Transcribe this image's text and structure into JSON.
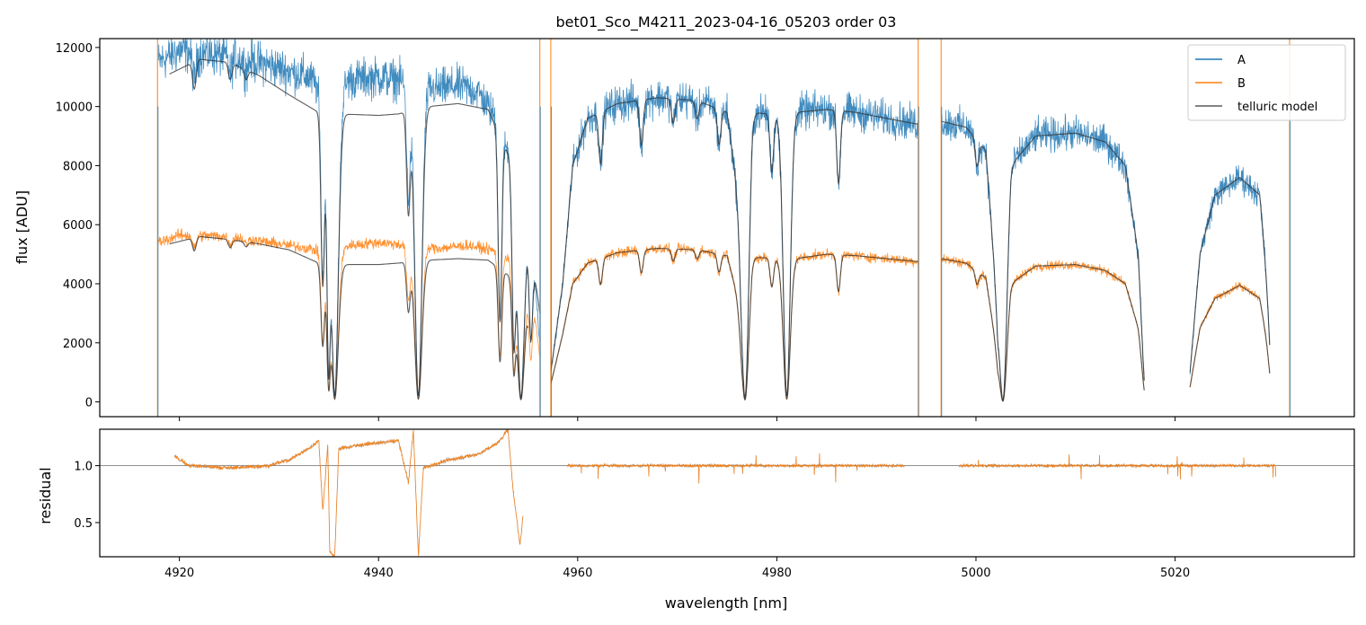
{
  "chart_data": [
    {
      "panel": "spectrum",
      "type": "line",
      "title": "bet01_Sco_M4211_2023-04-16_05203  order 03",
      "xlabel": "",
      "ylabel": "flux [ADU]",
      "xlim": [
        4912,
        5038
      ],
      "ylim": [
        -500,
        12300
      ],
      "yticks": [
        0,
        2000,
        4000,
        6000,
        8000,
        10000,
        12000
      ],
      "ytick_labels": [
        "0",
        "2000",
        "4000",
        "6000",
        "8000",
        "10000",
        "12000"
      ],
      "xticks": [
        4920,
        4940,
        4960,
        4980,
        5000,
        5020
      ],
      "legend": {
        "placement": "top-right",
        "entries": [
          "A",
          "B",
          "telluric model"
        ]
      },
      "series": [
        {
          "name": "A",
          "color": "#1f77b4"
        },
        {
          "name": "B",
          "color": "#ff7f0e"
        },
        {
          "name": "telluric model",
          "color": "#595959"
        }
      ],
      "model": {
        "telluric_A_continuum": [
          [
            4919,
            11100
          ],
          [
            4922,
            11600
          ],
          [
            4925,
            11500
          ],
          [
            4928,
            11050
          ],
          [
            4931,
            10400
          ],
          [
            4934,
            9800
          ],
          [
            4936,
            9750
          ],
          [
            4940,
            9700
          ],
          [
            4942,
            9750
          ],
          [
            4945,
            10000
          ],
          [
            4948,
            10100
          ],
          [
            4951,
            9900
          ],
          [
            4953,
            8400
          ],
          [
            4955,
            6000
          ],
          [
            4956.2,
            3000
          ]
        ],
        "telluric_B_continuum": [
          [
            4919,
            5350
          ],
          [
            4922,
            5600
          ],
          [
            4925,
            5500
          ],
          [
            4928,
            5350
          ],
          [
            4931,
            5150
          ],
          [
            4934,
            4700
          ],
          [
            4936,
            4650
          ],
          [
            4940,
            4650
          ],
          [
            4942,
            4700
          ],
          [
            4945,
            4800
          ],
          [
            4948,
            4850
          ],
          [
            4951,
            4800
          ],
          [
            4953,
            4300
          ],
          [
            4955,
            3400
          ]
        ],
        "A_data_continuum": [
          [
            4917.9,
            11500
          ],
          [
            4920,
            11900
          ],
          [
            4925,
            11700
          ],
          [
            4928,
            11500
          ],
          [
            4930,
            11300
          ],
          [
            4933,
            11000
          ],
          [
            4934.5,
            10400
          ],
          [
            4936,
            10500
          ],
          [
            4937,
            10900
          ],
          [
            4940,
            11000
          ],
          [
            4942,
            10900
          ],
          [
            4944,
            10700
          ],
          [
            4946,
            10600
          ],
          [
            4948,
            10700
          ],
          [
            4950,
            10500
          ],
          [
            4952,
            9500
          ],
          [
            4954,
            7500
          ],
          [
            4955.5,
            5000
          ],
          [
            4956.2,
            2000
          ]
        ],
        "B_data_continuum": [
          [
            4917.9,
            5400
          ],
          [
            4920,
            5650
          ],
          [
            4925,
            5600
          ],
          [
            4930,
            5350
          ],
          [
            4933,
            5200
          ],
          [
            4935,
            5000
          ],
          [
            4937,
            5300
          ],
          [
            4940,
            5400
          ],
          [
            4943,
            5300
          ],
          [
            4946,
            5200
          ],
          [
            4949,
            5300
          ],
          [
            4952,
            5100
          ],
          [
            4954,
            4600
          ],
          [
            4955.5,
            3500
          ],
          [
            4956.2,
            1500
          ]
        ],
        "A_fitted_continuum": [
          [
            4957.3,
            1000
          ],
          [
            4958.5,
            4000
          ],
          [
            4959.5,
            8000
          ],
          [
            4961,
            9600
          ],
          [
            4964,
            10100
          ],
          [
            4968,
            10300
          ],
          [
            4972,
            10200
          ],
          [
            4975,
            9800
          ],
          [
            4976.5,
            6000
          ],
          [
            4977.5,
            9800
          ],
          [
            4980.5,
            9700
          ],
          [
            4981.8,
            9800
          ],
          [
            4985,
            9900
          ],
          [
            4988,
            9800
          ],
          [
            4991,
            9600
          ],
          [
            4994.2,
            9400
          ]
        ],
        "A_fitted_continuum_2": [
          [
            4996.5,
            9500
          ],
          [
            4999,
            9300
          ],
          [
            5001,
            8500
          ],
          [
            5002.2,
            3000
          ],
          [
            5003.5,
            8000
          ],
          [
            5006,
            9000
          ],
          [
            5010,
            9100
          ],
          [
            5013,
            8800
          ],
          [
            5015,
            8000
          ],
          [
            5016.3,
            5000
          ],
          [
            5016.9,
            1500
          ]
        ],
        "A_fitted_continuum_3": [
          [
            5021.5,
            1000
          ],
          [
            5022.5,
            5000
          ],
          [
            5024,
            7000
          ],
          [
            5026.5,
            7600
          ],
          [
            5028.5,
            7000
          ],
          [
            5029.5,
            3000
          ]
        ],
        "B_fitted_continuum": [
          [
            4957.3,
            600
          ],
          [
            4958.5,
            2300
          ],
          [
            4959.5,
            4000
          ],
          [
            4961,
            4700
          ],
          [
            4964,
            5050
          ],
          [
            4968,
            5200
          ],
          [
            4972,
            5150
          ],
          [
            4975,
            4950
          ],
          [
            4976.5,
            3000
          ],
          [
            4977.5,
            4900
          ],
          [
            4980.5,
            4850
          ],
          [
            4981.8,
            4850
          ],
          [
            4985,
            5000
          ],
          [
            4988,
            4950
          ],
          [
            4991,
            4850
          ],
          [
            4994.2,
            4750
          ]
        ],
        "B_fitted_continuum_2": [
          [
            4996.5,
            4850
          ],
          [
            4999,
            4700
          ],
          [
            5001,
            4200
          ],
          [
            5002.2,
            1500
          ],
          [
            5003.5,
            4000
          ],
          [
            5006,
            4600
          ],
          [
            5010,
            4650
          ],
          [
            5013,
            4450
          ],
          [
            5015,
            4000
          ],
          [
            5016.3,
            2500
          ],
          [
            5016.9,
            800
          ]
        ],
        "B_fitted_continuum_3": [
          [
            5021.5,
            500
          ],
          [
            5022.5,
            2500
          ],
          [
            5024,
            3500
          ],
          [
            5026.5,
            3950
          ],
          [
            5028.5,
            3500
          ],
          [
            5029.5,
            1500
          ]
        ],
        "absorption_lines": [
          [
            4921.5,
            0.08
          ],
          [
            4925.1,
            0.05
          ],
          [
            4926.7,
            0.03
          ],
          [
            4934.4,
            0.6
          ],
          [
            4935.0,
            0.9
          ],
          [
            4935.6,
            0.98
          ],
          [
            4943.0,
            0.35
          ],
          [
            4944.0,
            0.98
          ],
          [
            4952.2,
            0.7
          ],
          [
            4953.6,
            0.75
          ],
          [
            4954.3,
            0.98
          ],
          [
            4955.3,
            0.6
          ],
          [
            4962.3,
            0.18
          ],
          [
            4966.4,
            0.15
          ],
          [
            4969.6,
            0.08
          ],
          [
            4972.0,
            0.06
          ],
          [
            4974.2,
            0.12
          ],
          [
            4976.8,
            0.98
          ],
          [
            4979.5,
            0.2
          ],
          [
            4981.0,
            0.98
          ],
          [
            4986.2,
            0.25
          ],
          [
            5000.1,
            0.1
          ],
          [
            5002.7,
            0.99
          ],
          [
            5017.3,
            0.99
          ],
          [
            5019.2,
            0.95
          ],
          [
            5020.3,
            0.95
          ],
          [
            5030.0,
            0.99
          ]
        ],
        "spikes_orange": [
          4917.8,
          4956.2,
          4957.3,
          4994.2,
          4996.5,
          5031.5
        ],
        "spikes_blue": [
          4917.8,
          4956.2,
          4957.3,
          4994.2,
          4996.5,
          5031.5
        ]
      }
    },
    {
      "panel": "residual",
      "type": "line",
      "title": "",
      "xlabel": "wavelength [nm]",
      "ylabel": "residual",
      "xlim": [
        4912,
        5038
      ],
      "ylim": [
        0.2,
        1.32
      ],
      "yticks": [
        0.5,
        1.0
      ],
      "ytick_labels": [
        "0.5",
        "1.0"
      ],
      "xticks": [
        4920,
        4940,
        4960,
        4980,
        5000,
        5020
      ],
      "xtick_labels": [
        "4920",
        "4940",
        "4960",
        "4980",
        "5000",
        "5020"
      ],
      "reference_line": 1.0,
      "segments": [
        {
          "x_range": [
            4919.5,
            4954.5
          ],
          "color": "#ff7f0e"
        },
        {
          "x_range": [
            4959,
            4992.8
          ],
          "color": "#ff7f0e"
        },
        {
          "x_range": [
            4998.3,
            5030.1
          ],
          "color": "#ff7f0e"
        }
      ],
      "residual_shape": [
        [
          4919.5,
          1.08
        ],
        [
          4921,
          1.0
        ],
        [
          4925,
          0.98
        ],
        [
          4929,
          1.0
        ],
        [
          4931,
          1.05
        ],
        [
          4933,
          1.15
        ],
        [
          4934,
          1.22
        ],
        [
          4934.4,
          0.6
        ],
        [
          4934.9,
          1.18
        ],
        [
          4935.1,
          0.25
        ],
        [
          4935.6,
          0.2
        ],
        [
          4936,
          1.15
        ],
        [
          4938,
          1.18
        ],
        [
          4940,
          1.2
        ],
        [
          4942,
          1.22
        ],
        [
          4943,
          0.85
        ],
        [
          4943.5,
          1.32
        ],
        [
          4944.0,
          0.2
        ],
        [
          4944.5,
          0.98
        ],
        [
          4947,
          1.05
        ],
        [
          4950,
          1.1
        ],
        [
          4952,
          1.2
        ],
        [
          4953,
          1.32
        ],
        [
          4953.5,
          0.8
        ],
        [
          4954.2,
          0.3
        ],
        [
          4954.5,
          0.55
        ]
      ]
    }
  ]
}
